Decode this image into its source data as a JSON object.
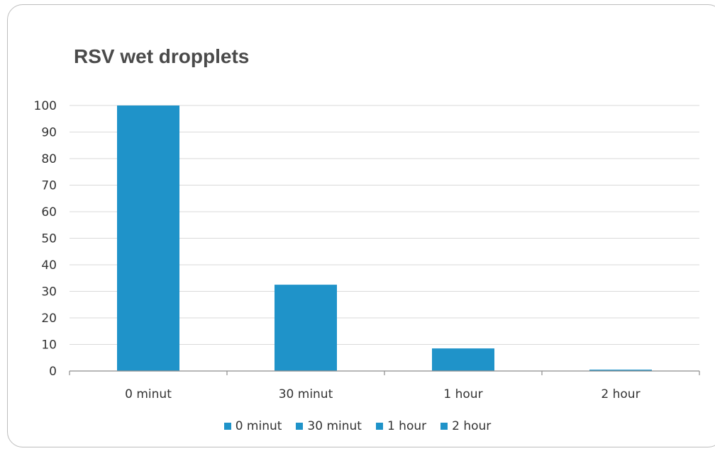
{
  "chart_data": {
    "type": "bar",
    "title": "RSV wet dropplets",
    "categories": [
      "0 minut",
      "30 minut",
      "1 hour",
      "2 hour"
    ],
    "series": [
      {
        "name": "0 minut",
        "values": [
          100,
          null,
          null,
          null
        ]
      },
      {
        "name": "30 minut",
        "values": [
          null,
          32.5,
          null,
          null
        ]
      },
      {
        "name": "1 hour",
        "values": [
          null,
          null,
          8.5,
          null
        ]
      },
      {
        "name": "2 hour",
        "values": [
          null,
          null,
          null,
          0.5
        ]
      }
    ],
    "values": [
      100,
      32.5,
      8.5,
      0.5
    ],
    "yticks": [
      "0",
      "10",
      "20",
      "30",
      "40",
      "50",
      "60",
      "70",
      "80",
      "90",
      "100"
    ],
    "ylim": [
      0,
      100
    ],
    "grid": true,
    "legend_position": "bottom",
    "bar_color": "#1f93c9"
  }
}
